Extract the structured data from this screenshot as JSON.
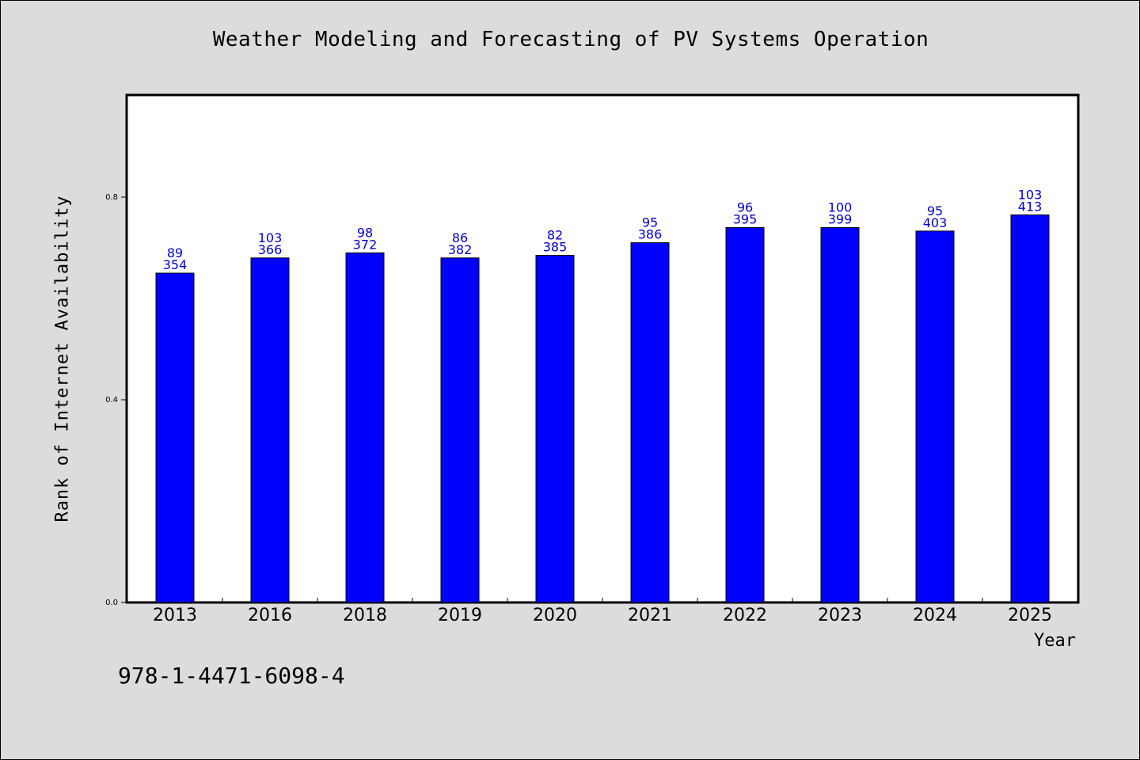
{
  "chart_data": {
    "type": "bar",
    "title": "Weather Modeling and Forecasting of PV Systems Operation",
    "xlabel": "Year",
    "ylabel": "Rank of Internet Availability",
    "categories": [
      "2013",
      "2016",
      "2018",
      "2019",
      "2020",
      "2021",
      "2022",
      "2023",
      "2024",
      "2025"
    ],
    "values": [
      0.65,
      0.68,
      0.69,
      0.68,
      0.685,
      0.71,
      0.74,
      0.74,
      0.733,
      0.765
    ],
    "data_labels_top": [
      "89",
      "103",
      "98",
      "86",
      "82",
      "95",
      "96",
      "100",
      "95",
      "103"
    ],
    "data_labels_bottom": [
      "354",
      "366",
      "372",
      "382",
      "385",
      "386",
      "395",
      "399",
      "403",
      "413"
    ],
    "yticks": [
      "0.0",
      "0.4",
      "0.8"
    ],
    "ytick_values": [
      0.0,
      0.4,
      0.8
    ],
    "ylim": [
      0,
      1.0
    ],
    "grid": false,
    "legend": "none",
    "bar_color": "#0000ff",
    "data_label_color": "#0000cc",
    "background_color": "#dcdcdc",
    "plot_background_color": "#ffffff"
  },
  "footer": {
    "isbn": "978-1-4471-6098-4"
  }
}
